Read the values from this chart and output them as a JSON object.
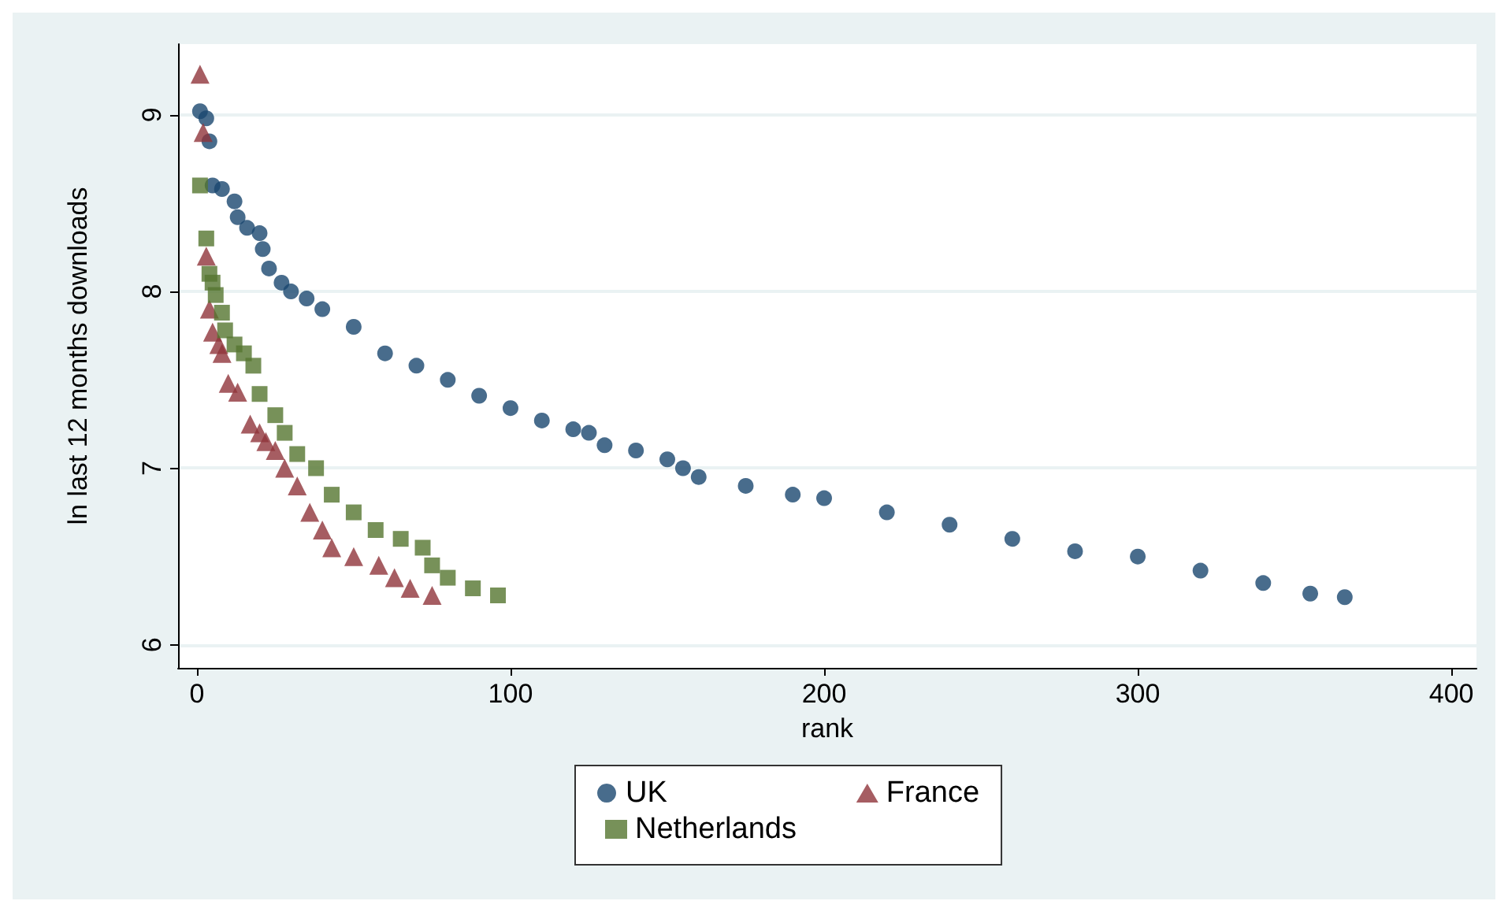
{
  "chart_data": {
    "type": "scatter",
    "xlabel": "rank",
    "ylabel": "ln last 12 months downloads",
    "xlim": [
      -6,
      408
    ],
    "ylim": [
      5.87,
      9.4
    ],
    "xticks": [
      0,
      100,
      200,
      300,
      400
    ],
    "yticks": [
      6,
      7,
      8,
      9
    ],
    "grid": "y",
    "legend": "bottom",
    "series": [
      {
        "name": "UK",
        "color": "#1a476f",
        "marker": "circle",
        "x": [
          1,
          3,
          4,
          5,
          8,
          12,
          13,
          16,
          20,
          21,
          23,
          27,
          30,
          35,
          40,
          50,
          60,
          70,
          80,
          90,
          100,
          110,
          120,
          125,
          130,
          140,
          150,
          155,
          160,
          175,
          190,
          200,
          220,
          240,
          260,
          280,
          300,
          320,
          340,
          355,
          366
        ],
        "values": [
          9.02,
          8.98,
          8.85,
          8.6,
          8.58,
          8.51,
          8.42,
          8.36,
          8.33,
          8.24,
          8.13,
          8.05,
          8.0,
          7.96,
          7.9,
          7.8,
          7.65,
          7.58,
          7.5,
          7.41,
          7.34,
          7.27,
          7.22,
          7.2,
          7.13,
          7.1,
          7.05,
          7.0,
          6.95,
          6.9,
          6.85,
          6.83,
          6.75,
          6.68,
          6.6,
          6.53,
          6.5,
          6.42,
          6.35,
          6.29,
          6.27
        ]
      },
      {
        "name": "France",
        "color": "#90353b",
        "marker": "triangle",
        "x": [
          1,
          2,
          3,
          4,
          5,
          7,
          8,
          10,
          13,
          17,
          20,
          22,
          25,
          28,
          32,
          36,
          40,
          43,
          50,
          58,
          63,
          68,
          75
        ],
        "values": [
          9.23,
          8.9,
          8.2,
          7.9,
          7.77,
          7.7,
          7.65,
          7.48,
          7.43,
          7.25,
          7.2,
          7.15,
          7.1,
          7.0,
          6.9,
          6.75,
          6.65,
          6.55,
          6.5,
          6.45,
          6.38,
          6.32,
          6.28
        ]
      },
      {
        "name": "Netherlands",
        "color": "#55752f",
        "marker": "square",
        "x": [
          1,
          3,
          4,
          5,
          6,
          8,
          9,
          12,
          15,
          18,
          20,
          25,
          28,
          32,
          38,
          43,
          50,
          57,
          65,
          72,
          75,
          80,
          88,
          96
        ],
        "values": [
          8.6,
          8.3,
          8.1,
          8.05,
          7.98,
          7.88,
          7.78,
          7.7,
          7.65,
          7.58,
          7.42,
          7.3,
          7.2,
          7.08,
          7.0,
          6.85,
          6.75,
          6.65,
          6.6,
          6.55,
          6.45,
          6.38,
          6.32,
          6.28
        ]
      }
    ]
  }
}
